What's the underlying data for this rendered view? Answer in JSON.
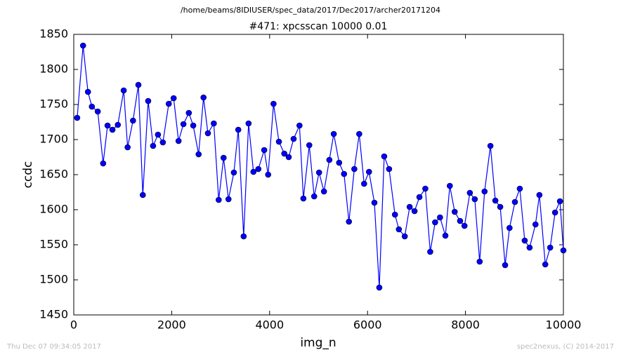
{
  "chart_data": {
    "type": "line",
    "title": "#471: xpcsscan 10000 0.01",
    "subtitle": "/home/beams/8IDIUSER/spec_data/2017/Dec2017/archer20171204",
    "xlabel": "img_n",
    "ylabel": "ccdc",
    "annotations": [
      "Thu Dec 07 09:34:05 2017",
      "spec2nexus, (C) 2014-2017"
    ],
    "color": "#0000ff",
    "x": [
      70,
      190,
      290,
      370,
      490,
      600,
      690,
      790,
      900,
      1020,
      1100,
      1210,
      1320,
      1410,
      1520,
      1620,
      1720,
      1820,
      1940,
      2040,
      2140,
      2240,
      2350,
      2440,
      2550,
      2650,
      2740,
      2860,
      2960,
      3060,
      3160,
      3270,
      3360,
      3470,
      3570,
      3670,
      3770,
      3890,
      3970,
      4080,
      4190,
      4300,
      4390,
      4490,
      4610,
      4690,
      4810,
      4910,
      5010,
      5110,
      5220,
      5310,
      5420,
      5520,
      5620,
      5730,
      5830,
      5930,
      6030,
      6140,
      6240,
      6340,
      6440,
      6560,
      6640,
      6760,
      6860,
      6960,
      7060,
      7180,
      7280,
      7380,
      7480,
      7590,
      7680,
      7780,
      7890,
      7980,
      8090,
      8190,
      8290,
      8390,
      8510,
      8610,
      8710,
      8810,
      8900,
      9010,
      9110,
      9210,
      9310,
      9430,
      9510,
      9630,
      9730,
      9830,
      9930,
      10000
    ],
    "values": [
      1731,
      1834,
      1768,
      1747,
      1740,
      1666,
      1720,
      1714,
      1721,
      1770,
      1689,
      1727,
      1778,
      1621,
      1755,
      1691,
      1707,
      1696,
      1751,
      1759,
      1698,
      1722,
      1738,
      1720,
      1679,
      1760,
      1709,
      1723,
      1614,
      1674,
      1615,
      1653,
      1714,
      1562,
      1723,
      1654,
      1658,
      1685,
      1650,
      1751,
      1697,
      1680,
      1675,
      1701,
      1720,
      1616,
      1692,
      1619,
      1653,
      1626,
      1671,
      1708,
      1667,
      1651,
      1583,
      1658,
      1708,
      1637,
      1654,
      1610,
      1489,
      1676,
      1658,
      1593,
      1572,
      1562,
      1604,
      1598,
      1618,
      1630,
      1540,
      1582,
      1589,
      1563,
      1634,
      1597,
      1584,
      1577,
      1624,
      1615,
      1526,
      1626,
      1691,
      1613,
      1604,
      1521,
      1574,
      1611,
      1630,
      1556,
      1546,
      1579,
      1621,
      1522,
      1546,
      1596,
      1612,
      1542
    ],
    "xlim": [
      0,
      10000
    ],
    "xticks": [
      0,
      2000,
      4000,
      6000,
      8000,
      10000
    ],
    "ylim": [
      1450,
      1850
    ],
    "yticks": [
      1450,
      1500,
      1550,
      1600,
      1650,
      1700,
      1750,
      1800,
      1850
    ]
  }
}
